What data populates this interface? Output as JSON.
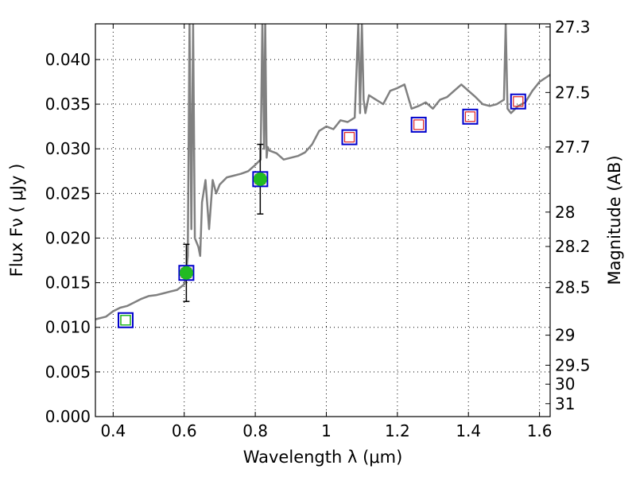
{
  "chart_data": {
    "type": "scatter",
    "xlabel": "Wavelength  λ (μm)",
    "ylabel": "Flux  Fν  ( μJy )",
    "y2label": "Magnitude (AB)",
    "xlim": [
      0.35,
      1.63
    ],
    "ylim": [
      0.0,
      0.044
    ],
    "grid": true,
    "x_ticks": [
      0.4,
      0.6,
      0.8,
      1.0,
      1.2,
      1.4,
      1.6
    ],
    "x_tick_labels": [
      "0.4",
      "0.6",
      "0.8",
      "1",
      "1.2",
      "1.4",
      "1.6"
    ],
    "y_ticks": [
      0.0,
      0.005,
      0.01,
      0.015,
      0.02,
      0.025,
      0.03,
      0.035,
      0.04
    ],
    "y_tick_labels": [
      "0.000",
      "0.005",
      "0.010",
      "0.015",
      "0.020",
      "0.025",
      "0.030",
      "0.035",
      "0.040"
    ],
    "y2_tick_labels": [
      "27.3",
      "27.5",
      "27.7",
      "28",
      "28.2",
      "28.5",
      "29",
      "29.5",
      "30",
      "31"
    ],
    "y2_tick_values": [
      27.3,
      27.5,
      27.7,
      28.0,
      28.2,
      28.5,
      29.0,
      29.5,
      30.0,
      31.0
    ],
    "colors": {
      "spectrum": "#808080",
      "photometry": "#22bb22",
      "model_box": "#0000cc",
      "model_inner": "#dd2222"
    },
    "series": [
      {
        "kind": "model-spectrum-line",
        "x": [
          0.35,
          0.36,
          0.38,
          0.4,
          0.42,
          0.44,
          0.46,
          0.48,
          0.5,
          0.52,
          0.54,
          0.56,
          0.58,
          0.6,
          0.605,
          0.61,
          0.615,
          0.62,
          0.625,
          0.63,
          0.64,
          0.645,
          0.65,
          0.66,
          0.67,
          0.68,
          0.69,
          0.7,
          0.72,
          0.74,
          0.76,
          0.78,
          0.8,
          0.815,
          0.82,
          0.825,
          0.828,
          0.832,
          0.835,
          0.84,
          0.86,
          0.88,
          0.9,
          0.92,
          0.94,
          0.96,
          0.98,
          1.0,
          1.02,
          1.04,
          1.06,
          1.08,
          1.09,
          1.095,
          1.1,
          1.105,
          1.11,
          1.12,
          1.14,
          1.16,
          1.18,
          1.2,
          1.22,
          1.24,
          1.26,
          1.28,
          1.3,
          1.32,
          1.34,
          1.36,
          1.38,
          1.4,
          1.42,
          1.44,
          1.46,
          1.48,
          1.5,
          1.505,
          1.51,
          1.52,
          1.54,
          1.56,
          1.58,
          1.6,
          1.63
        ],
        "y": [
          0.0109,
          0.011,
          0.0112,
          0.0118,
          0.0122,
          0.0124,
          0.0128,
          0.0132,
          0.0135,
          0.0136,
          0.0138,
          0.014,
          0.0142,
          0.0148,
          0.016,
          0.018,
          0.044,
          0.021,
          0.044,
          0.02,
          0.019,
          0.018,
          0.024,
          0.0265,
          0.021,
          0.0265,
          0.025,
          0.026,
          0.0268,
          0.027,
          0.0272,
          0.0275,
          0.0282,
          0.0288,
          0.044,
          0.03,
          0.044,
          0.029,
          0.0302,
          0.0298,
          0.0295,
          0.0288,
          0.029,
          0.0292,
          0.0296,
          0.0305,
          0.032,
          0.0325,
          0.0322,
          0.0332,
          0.033,
          0.0335,
          0.044,
          0.034,
          0.044,
          0.0355,
          0.034,
          0.036,
          0.0355,
          0.035,
          0.0365,
          0.0368,
          0.0372,
          0.0345,
          0.0348,
          0.0352,
          0.0345,
          0.0355,
          0.0358,
          0.0365,
          0.0372,
          0.0365,
          0.0358,
          0.035,
          0.0348,
          0.035,
          0.0355,
          0.044,
          0.0345,
          0.034,
          0.0348,
          0.0352,
          0.0365,
          0.0375,
          0.0383
        ]
      },
      {
        "kind": "observed-photometry",
        "x": [
          0.435,
          0.606,
          0.814
        ],
        "y": [
          0.0108,
          0.0161,
          0.0266
        ],
        "yerr": [
          0.0,
          0.0032,
          0.0039
        ]
      },
      {
        "kind": "model-photometry",
        "x": [
          0.435,
          0.606,
          0.814,
          1.065,
          1.26,
          1.405,
          1.54
        ],
        "y": [
          0.0108,
          0.0161,
          0.0266,
          0.0313,
          0.0327,
          0.0336,
          0.0353
        ]
      }
    ]
  }
}
